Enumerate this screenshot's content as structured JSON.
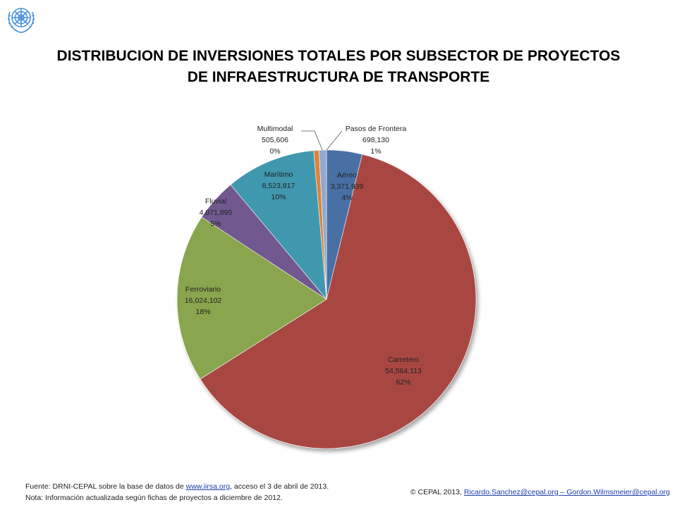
{
  "logo": {
    "icon": "un-emblem-icon",
    "color": "#4b92db"
  },
  "chart_data": {
    "type": "pie",
    "title": [
      "DISTRIBUCION DE INVERSIONES TOTALES POR SUBSECTOR DE PROYECTOS",
      "DE INFRAESTRUCTURA DE TRANSPORTE"
    ],
    "start_angle_deg": 0,
    "direction": "clockwise",
    "slices": [
      {
        "name": "Aéreo",
        "value_label": "3,371,939",
        "value": 3371939,
        "pct_label": "4%",
        "color": "#4a6fa5"
      },
      {
        "name": "Carretero",
        "value_label": "54,564,113",
        "value": 54564113,
        "pct_label": "62%",
        "color": "#a84643"
      },
      {
        "name": "Ferroviario",
        "value_label": "16,024,102",
        "value": 16024102,
        "pct_label": "18%",
        "color": "#89a54e"
      },
      {
        "name": "Fluvial",
        "value_label": "4,071,895",
        "value": 4071895,
        "pct_label": "5%",
        "color": "#71588f"
      },
      {
        "name": "Marítimo",
        "value_label": "8,523,817",
        "value": 8523817,
        "pct_label": "10%",
        "color": "#4198af"
      },
      {
        "name": "Multimodal",
        "value_label": "505,606",
        "value": 505606,
        "pct_label": "0%",
        "color": "#db843d"
      },
      {
        "name": "Pasos de Frontera",
        "value_label": "698,130",
        "value": 698130,
        "pct_label": "1%",
        "color": "#93a9cf"
      }
    ]
  },
  "footer": {
    "source_prefix": "Fuente: DRNI-CEPAL  sobre la base de datos de ",
    "source_link": "www.iirsa.org",
    "source_suffix": ",  acceso el 3 de abril de 2013.",
    "note": "Nota:  Información actualizada según fichas de proyectos a diciembre de 2012.",
    "copyright_prefix": "© CEPAL 2013, ",
    "email1": "Ricardo.Sanchez@cepal.org",
    "separator": " – ",
    "email2": "Gordon.Wilmsmeier@cepal.org"
  }
}
